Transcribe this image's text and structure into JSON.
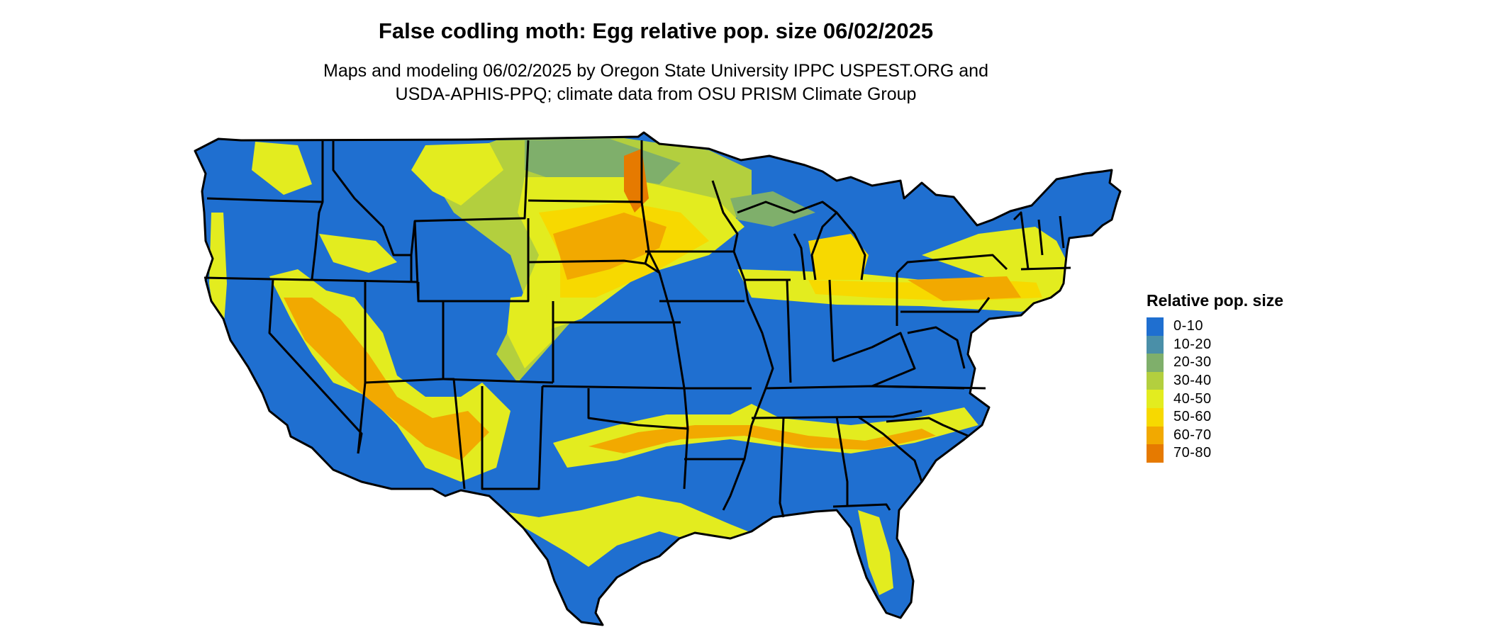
{
  "title": "False codling moth: Egg relative pop. size 06/02/2025",
  "subtitle_lines": [
    "Maps and modeling 06/02/2025 by Oregon State University IPPC USPEST.ORG and",
    "USDA-APHIS-PPQ; climate data from OSU PRISM Climate Group"
  ],
  "legend": {
    "title": "Relative pop. size",
    "items": [
      {
        "label": "0-10",
        "color": "#1f6fd0"
      },
      {
        "label": "10-20",
        "color": "#4a8fa8"
      },
      {
        "label": "20-30",
        "color": "#7faf6b"
      },
      {
        "label": "30-40",
        "color": "#b3cf3e"
      },
      {
        "label": "40-50",
        "color": "#e3ec1f"
      },
      {
        "label": "50-60",
        "color": "#f7d900"
      },
      {
        "label": "60-70",
        "color": "#f2a900"
      },
      {
        "label": "70-80",
        "color": "#e67a00"
      }
    ]
  }
}
